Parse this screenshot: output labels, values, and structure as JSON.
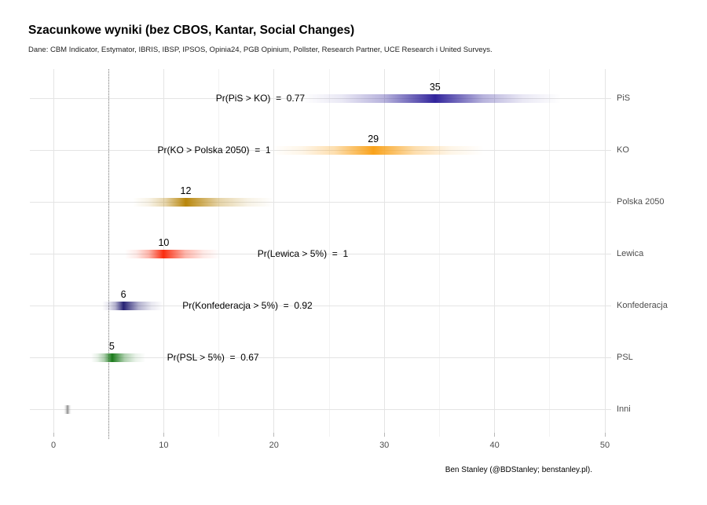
{
  "title": "Szacunkowe wyniki (bez CBOS, Kantar, Social Changes)",
  "subtitle": "Dane: CBM Indicator, Estymator, IBRIS, IBSP, IPSOS, Opinia24, PGB Opinium, Pollster, Research Partner, UCE Research i United Surveys.",
  "caption": "Ben Stanley (@BDStanley; benstanley.pl).",
  "chart_data": {
    "type": "heatmap",
    "variant": "horizontal gradient density strips per party (poll estimate distributions)",
    "title": "Szacunkowe wyniki (bez CBOS, Kantar, Social Changes)",
    "xlabel": "",
    "ylabel": "",
    "xlim": [
      -2.3,
      50.6
    ],
    "x_ticks": [
      0,
      10,
      20,
      30,
      40,
      50
    ],
    "x_minor_ticks": [
      5,
      15,
      25,
      35,
      45
    ],
    "reference_line_x": 5,
    "grid": true,
    "categories": [
      "PiS",
      "KO",
      "Polska 2050",
      "Lewica",
      "Konfederacja",
      "PSL",
      "Inni"
    ],
    "series": [
      {
        "party": "PiS",
        "label": "35",
        "peak": 34.6,
        "range": [
          22.5,
          46.0
        ],
        "color": "#31249c",
        "annotation": {
          "text": "Pr(PiS > KO)  =  0.77",
          "anchor_x": 22.8,
          "align": "right"
        }
      },
      {
        "party": "KO",
        "label": "29",
        "peak": 29.0,
        "range": [
          19.8,
          39.0
        ],
        "color": "#f9a21a",
        "annotation": {
          "text": "Pr(KO > Polska 2050)  =  1",
          "anchor_x": 19.7,
          "align": "right"
        }
      },
      {
        "party": "Polska 2050",
        "label": "12",
        "peak": 12.0,
        "range": [
          7.2,
          20.0
        ],
        "color": "#b8860b",
        "annotation": null
      },
      {
        "party": "Lewica",
        "label": "10",
        "peak": 10.0,
        "range": [
          6.5,
          15.2
        ],
        "color": "#fa2d10",
        "annotation": {
          "text": "Pr(Lewica > 5%)  =  1",
          "anchor_x": 18.5,
          "align": "left"
        }
      },
      {
        "party": "Konfederacja",
        "label": "6",
        "peak": 6.35,
        "range": [
          4.4,
          10.0
        ],
        "color": "#272274",
        "annotation": {
          "text": "Pr(Konfederacja > 5%)  =  0.92",
          "anchor_x": 11.7,
          "align": "left"
        }
      },
      {
        "party": "PSL",
        "label": "5",
        "peak": 5.3,
        "range": [
          3.4,
          8.3
        ],
        "color": "#1a7a1a",
        "annotation": {
          "text": "Pr(PSL > 5%)  =  0.67",
          "anchor_x": 10.3,
          "align": "left"
        }
      },
      {
        "party": "Inni",
        "label": "",
        "peak": 1.3,
        "range": [
          0.95,
          1.65
        ],
        "color": "#8a8a8a",
        "annotation": null
      }
    ]
  }
}
